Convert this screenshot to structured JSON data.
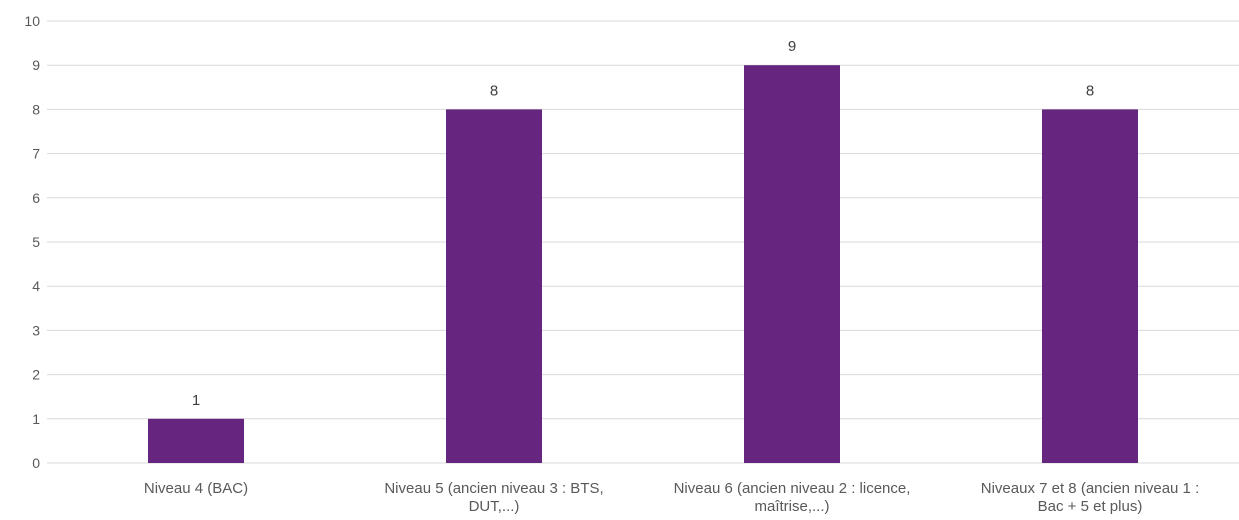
{
  "chart_data": {
    "type": "bar",
    "categories": [
      [
        "Niveau 4 (BAC)"
      ],
      [
        "Niveau 5 (ancien niveau 3 : BTS,",
        "DUT,...)"
      ],
      [
        "Niveau 6 (ancien niveau 2 : licence,",
        "maîtrise,...)"
      ],
      [
        "Niveaux 7 et 8 (ancien niveau 1 :",
        "Bac + 5 et plus)"
      ]
    ],
    "values": [
      1,
      8,
      9,
      8
    ],
    "data_labels": [
      "1",
      "8",
      "9",
      "8"
    ],
    "ylim": [
      0,
      10
    ],
    "yticks": [
      0,
      1,
      2,
      3,
      4,
      5,
      6,
      7,
      8,
      9,
      10
    ],
    "grid": true,
    "legend": "none",
    "colors": {
      "bar": "#66267F",
      "grid": "#D9D9D9",
      "text": "#595959",
      "label": "#404040"
    }
  }
}
